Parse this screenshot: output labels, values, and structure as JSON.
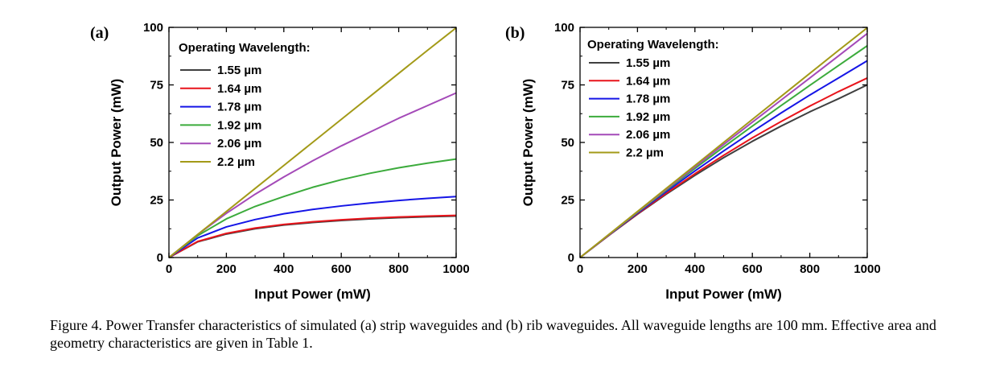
{
  "caption": "Figure 4. Power Transfer characteristics of simulated (a) strip waveguides and (b) rib waveguides. All waveguide lengths are 100 mm. Effective area and geometry characteristics are given in Table 1.",
  "colors": {
    "1.55 µm": "#404040",
    "1.64 µm": "#e8141b",
    "1.78 µm": "#1515e6",
    "1.92 µm": "#3cab3c",
    "2.06 µm": "#a44ab8",
    "2.2 µm": "#a39a18"
  },
  "chart_data": [
    {
      "type": "line",
      "panel_label": "(a)",
      "xlabel": "Input Power (mW)",
      "ylabel": "Output Power (mW)",
      "xlim": [
        0,
        1000
      ],
      "ylim": [
        0,
        100
      ],
      "xticks": [
        0,
        200,
        400,
        600,
        800,
        1000
      ],
      "yticks": [
        0,
        25,
        50,
        75,
        100
      ],
      "legend_title": "Operating Wavelength:",
      "legend_position": "top-left",
      "x": [
        0,
        100,
        200,
        300,
        400,
        500,
        600,
        700,
        800,
        900,
        1000
      ],
      "series": [
        {
          "name": "1.55 µm",
          "values": [
            0,
            6.8,
            10.2,
            12.5,
            14.1,
            15.2,
            16.1,
            16.8,
            17.3,
            17.7,
            18.0
          ]
        },
        {
          "name": "1.64 µm",
          "values": [
            0,
            7.0,
            10.5,
            12.8,
            14.4,
            15.5,
            16.4,
            17.1,
            17.6,
            18.0,
            18.3
          ]
        },
        {
          "name": "1.78 µm",
          "values": [
            0,
            8.5,
            13.3,
            16.5,
            19.0,
            20.9,
            22.4,
            23.7,
            24.8,
            25.7,
            26.5
          ]
        },
        {
          "name": "1.92 µm",
          "values": [
            0,
            9.5,
            16.8,
            22.2,
            26.5,
            30.5,
            33.8,
            36.6,
            39.0,
            41.0,
            42.8
          ]
        },
        {
          "name": "2.06 µm",
          "values": [
            0,
            10.0,
            19.2,
            27.5,
            35.0,
            42.0,
            48.5,
            54.5,
            60.5,
            66.0,
            71.5
          ]
        },
        {
          "name": "2.2 µm",
          "values": [
            0,
            10.0,
            20.0,
            30.0,
            40.0,
            50.0,
            60.0,
            70.0,
            80.0,
            90.0,
            99.8
          ]
        }
      ]
    },
    {
      "type": "line",
      "panel_label": "(b)",
      "xlabel": "Input Power (mW)",
      "ylabel": "Output Power (mW)",
      "xlim": [
        0,
        1000
      ],
      "ylim": [
        0,
        100
      ],
      "xticks": [
        0,
        200,
        400,
        600,
        800,
        1000
      ],
      "yticks": [
        0,
        25,
        50,
        75,
        100
      ],
      "legend_title": "Operating Wavelength:",
      "legend_position": "top-left",
      "x": [
        0,
        100,
        200,
        300,
        400,
        500,
        600,
        700,
        800,
        900,
        1000
      ],
      "series": [
        {
          "name": "1.55 µm",
          "values": [
            0,
            9.6,
            18.8,
            27.5,
            35.7,
            43.4,
            50.5,
            57.1,
            63.3,
            69.0,
            75.0
          ]
        },
        {
          "name": "1.64 µm",
          "values": [
            0,
            9.6,
            19.0,
            27.9,
            36.4,
            44.4,
            52.0,
            59.1,
            65.8,
            72.1,
            78.0
          ]
        },
        {
          "name": "1.78 µm",
          "values": [
            0,
            9.7,
            19.3,
            28.6,
            37.6,
            46.3,
            54.7,
            62.8,
            70.6,
            78.0,
            85.5
          ]
        },
        {
          "name": "1.92 µm",
          "values": [
            0,
            9.8,
            19.6,
            29.2,
            38.7,
            48.0,
            57.1,
            66.0,
            74.8,
            83.4,
            92.0
          ]
        },
        {
          "name": "2.06 µm",
          "values": [
            0,
            9.9,
            19.8,
            29.6,
            39.4,
            49.1,
            58.8,
            68.4,
            78.0,
            87.6,
            97.3
          ]
        },
        {
          "name": "2.2 µm",
          "values": [
            0,
            10.0,
            20.0,
            30.0,
            40.0,
            50.0,
            60.0,
            70.0,
            80.0,
            90.0,
            99.8
          ]
        }
      ]
    }
  ]
}
